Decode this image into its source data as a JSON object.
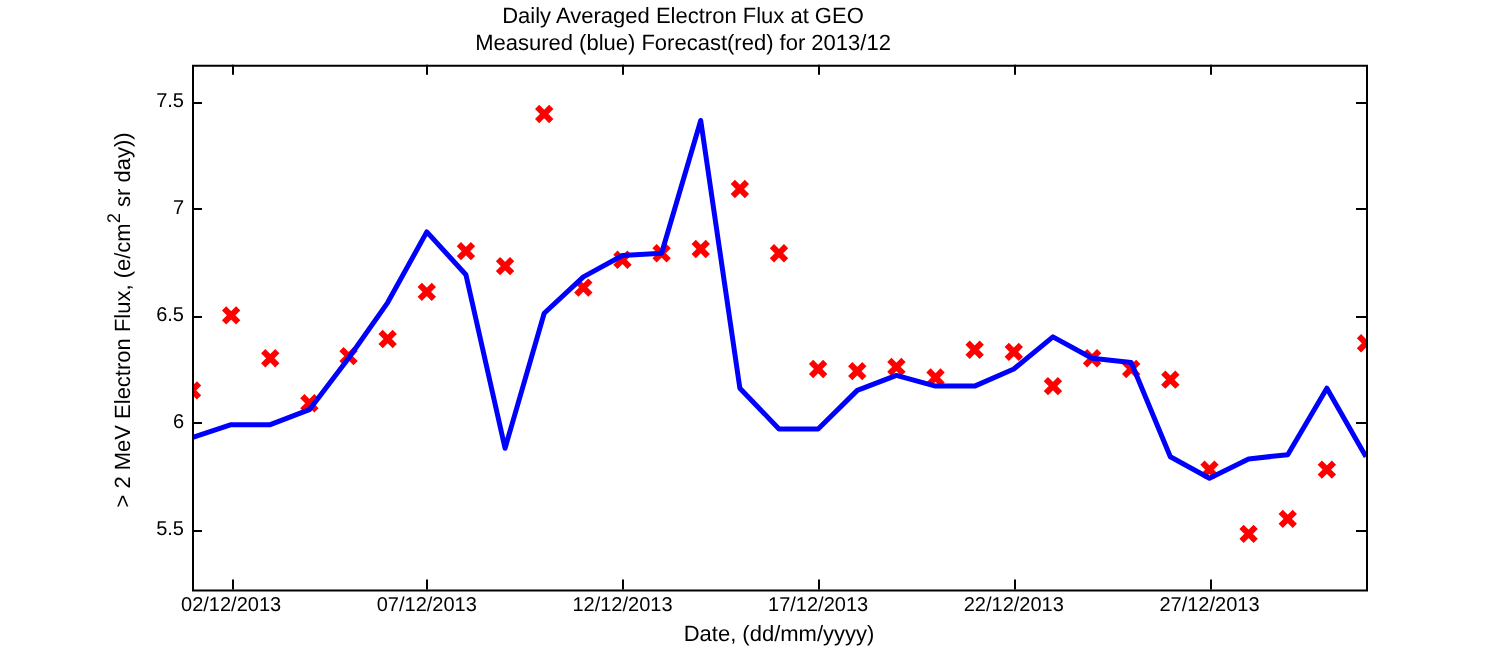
{
  "chart_data": {
    "type": "line",
    "title": "Daily Averaged Electron Flux at GEO",
    "subtitle": "Measured (blue) Forecast(red) for 2013/12",
    "xlabel": "Date, (dd/mm/yyyy)",
    "ylabel": "> 2 MeV Electron Flux, (e/cm$^{2}$ sr day))",
    "x": [
      "2013-12-01",
      "2013-12-02",
      "2013-12-03",
      "2013-12-04",
      "2013-12-05",
      "2013-12-06",
      "2013-12-07",
      "2013-12-08",
      "2013-12-09",
      "2013-12-10",
      "2013-12-11",
      "2013-12-12",
      "2013-12-13",
      "2013-12-14",
      "2013-12-15",
      "2013-12-16",
      "2013-12-17",
      "2013-12-18",
      "2013-12-19",
      "2013-12-20",
      "2013-12-21",
      "2013-12-22",
      "2013-12-23",
      "2013-12-24",
      "2013-12-25",
      "2013-12-26",
      "2013-12-27",
      "2013-12-28",
      "2013-12-29",
      "2013-12-30",
      "2013-12-31"
    ],
    "series": [
      {
        "color": "#0000ff",
        "marker": "none",
        "line_style": "solid",
        "values": [
          5.93,
          5.99,
          5.99,
          6.06,
          6.3,
          6.56,
          6.89,
          6.69,
          5.88,
          6.51,
          6.68,
          6.78,
          6.79,
          7.41,
          6.16,
          5.97,
          5.97,
          6.15,
          6.22,
          6.17,
          6.17,
          6.25,
          6.4,
          6.3,
          6.28,
          5.84,
          5.74,
          5.83,
          5.85,
          6.16,
          5.84
        ]
      },
      {
        "type": "scatter",
        "color": "#ff0000",
        "marker": "cross",
        "values": [
          6.15,
          6.5,
          6.3,
          6.09,
          6.31,
          6.39,
          6.61,
          6.8,
          6.73,
          7.44,
          6.63,
          6.76,
          6.79,
          6.81,
          7.09,
          6.79,
          6.25,
          6.24,
          6.26,
          6.21,
          6.34,
          6.33,
          6.17,
          6.3,
          6.25,
          6.2,
          5.78,
          5.48,
          5.55,
          5.78,
          6.37
        ]
      }
    ],
    "xlim": [
      "2013-12-01",
      "2013-12-31"
    ],
    "xticks": [
      {
        "value": "2013-12-02",
        "label": "02/12/2013"
      },
      {
        "value": "2013-12-07",
        "label": "07/12/2013"
      },
      {
        "value": "2013-12-12",
        "label": "12/12/2013"
      },
      {
        "value": "2013-12-17",
        "label": "17/12/2013"
      },
      {
        "value": "2013-12-22",
        "label": "22/12/2013"
      },
      {
        "value": "2013-12-27",
        "label": "27/12/2013"
      }
    ],
    "ylim": [
      5.22,
      7.67
    ],
    "yticks": [
      5.5,
      6,
      6.5,
      7,
      7.5
    ],
    "grid": false,
    "legend": false
  }
}
